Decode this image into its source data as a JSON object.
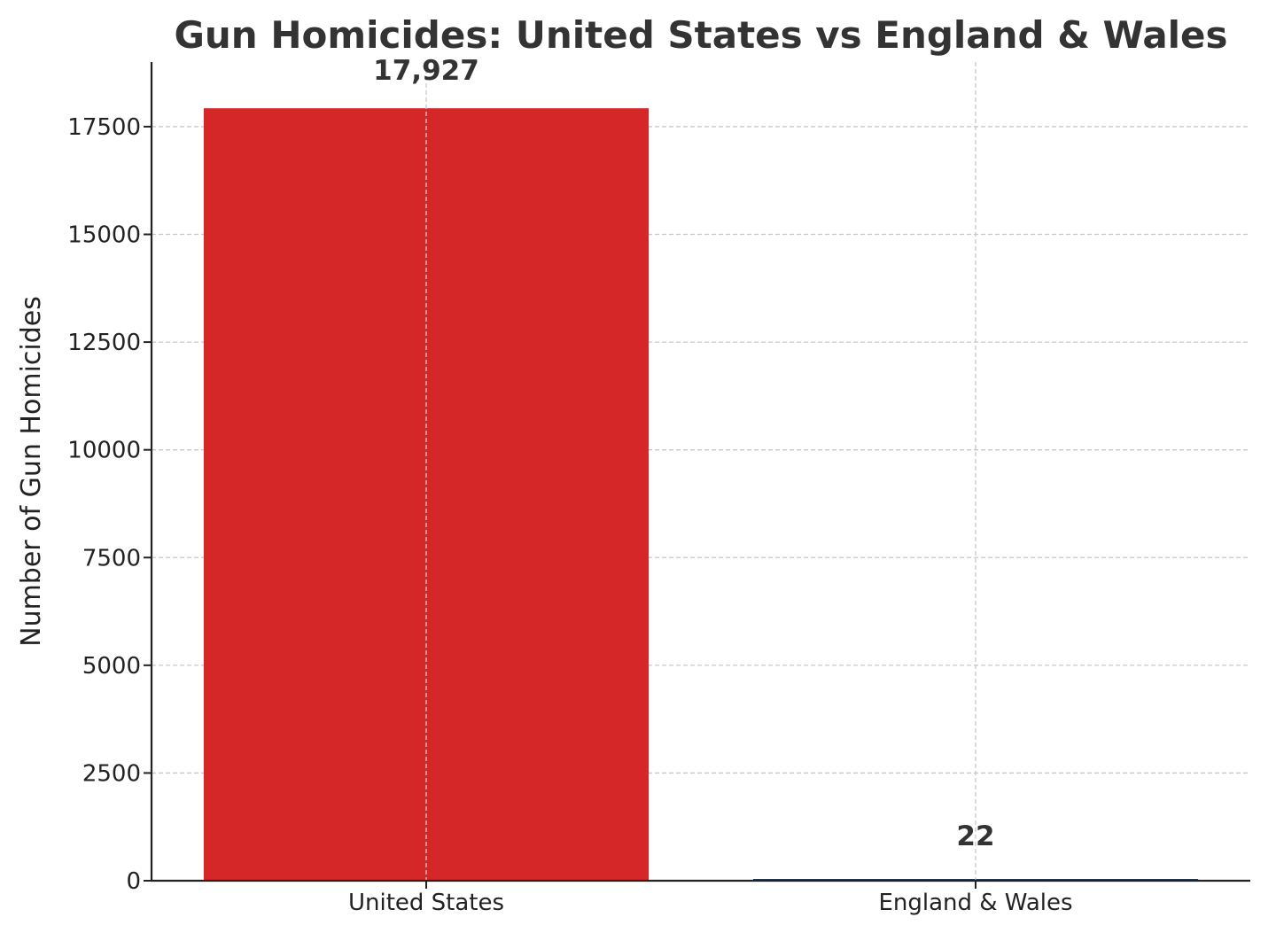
{
  "chart_data": {
    "type": "bar",
    "title": "Gun Homicides: United States vs England & Wales",
    "xlabel": "",
    "ylabel": "Number of Gun Homicides",
    "categories": [
      "United States",
      "England & Wales"
    ],
    "values": [
      17927,
      22
    ],
    "value_labels": [
      "17,927",
      "22"
    ],
    "colors": [
      "#d62728",
      "#1f3b57"
    ],
    "ylim": [
      0,
      19000
    ],
    "yticks": [
      0,
      2500,
      5000,
      7500,
      10000,
      12500,
      15000,
      17500
    ],
    "ytick_labels": [
      "0",
      "2500",
      "5000",
      "7500",
      "10000",
      "12500",
      "15000",
      "17500"
    ],
    "grid": true,
    "legend": "none"
  }
}
